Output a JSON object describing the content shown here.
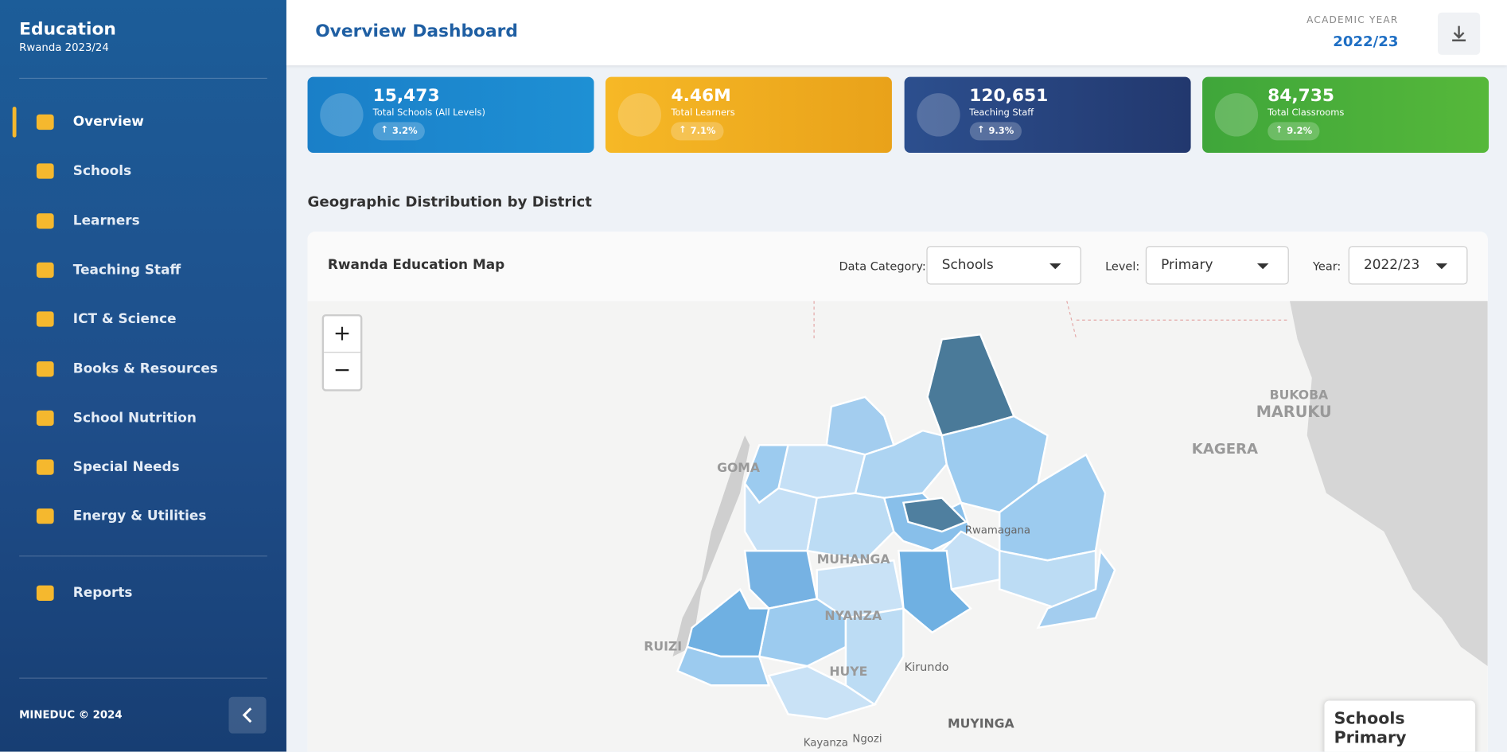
{
  "sidebar": {
    "title": "Education",
    "subtitle": "Rwanda 2023/24",
    "nav": [
      "Overview",
      "Schools",
      "Learners",
      "Teaching Staff",
      "ICT & Science",
      "Books & Resources",
      "School Nutrition",
      "Special Needs",
      "Energy & Utilities"
    ],
    "reports": "Reports",
    "footer": "MINEDUC © 2024"
  },
  "header": {
    "title": "Overview Dashboard",
    "year_label": "ACADEMIC YEAR",
    "year": "2022/23"
  },
  "cards": [
    {
      "value": "15,473",
      "label": "Total Schools (All Levels)",
      "change": "3.2%"
    },
    {
      "value": "4.46M",
      "label": "Total Learners",
      "change": "7.1%"
    },
    {
      "value": "120,651",
      "label": "Teaching Staff",
      "change": "9.3%"
    },
    {
      "value": "84,735",
      "label": "Total Classrooms",
      "change": "9.2%"
    }
  ],
  "section": {
    "title": "Geographic Distribution by District"
  },
  "map": {
    "title": "Rwanda Education Map",
    "filters": [
      {
        "label": "Data Category:",
        "value": "Schools"
      },
      {
        "label": "Level:",
        "value": "Primary"
      },
      {
        "label": "Year:",
        "value": "2022/23"
      }
    ],
    "places": [
      "GOMA",
      "BUKOBA",
      "MARUKU",
      "KAGERA",
      "Rwamagana",
      "MUHANGA",
      "NYANZA",
      "RUIZI",
      "HUYE",
      "Kirundo",
      "MUYINGA",
      "Kayanza",
      "Ngozi"
    ],
    "legend_title": "Schools Primary"
  }
}
